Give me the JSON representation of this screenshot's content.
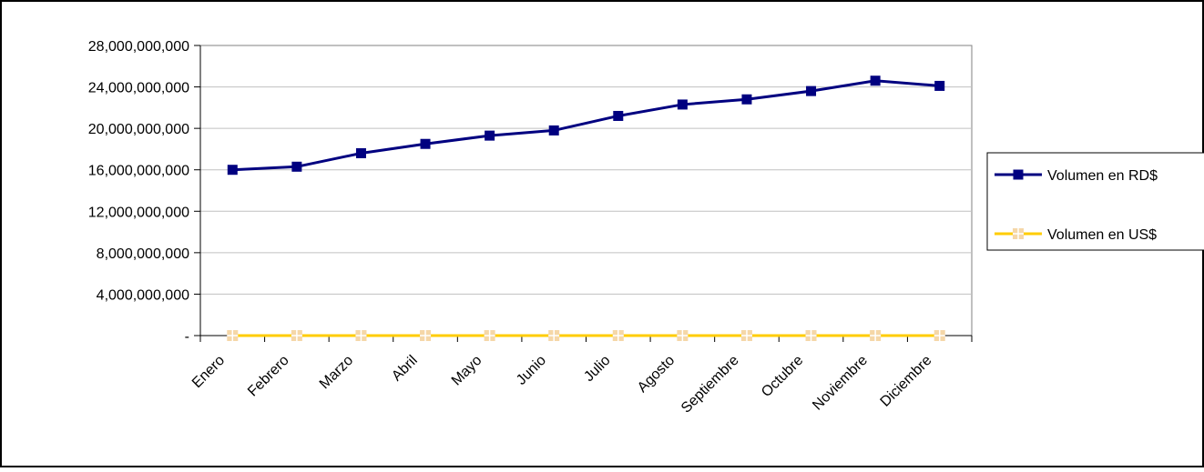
{
  "chart_data": {
    "type": "line",
    "title": "",
    "xlabel": "",
    "ylabel": "",
    "categories": [
      "Enero",
      "Febrero",
      "Marzo",
      "Abril",
      "Mayo",
      "Junio",
      "Julio",
      "Agosto",
      "Septiembre",
      "Octubre",
      "Noviembre",
      "Diciembre"
    ],
    "ylim": [
      0,
      28000000000
    ],
    "yticks": [
      0,
      4000000000,
      8000000000,
      12000000000,
      16000000000,
      20000000000,
      24000000000,
      28000000000
    ],
    "ytick_labels": [
      "-",
      "4,000,000,000",
      "8,000,000,000",
      "12,000,000,000",
      "16,000,000,000",
      "20,000,000,000",
      "24,000,000,000",
      "28,000,000,000"
    ],
    "grid": true,
    "legend_position": "right",
    "series": [
      {
        "name": "Volumen en RD$",
        "color": "#000080",
        "marker": "square",
        "values": [
          16000000000,
          16300000000,
          17600000000,
          18500000000,
          19300000000,
          19800000000,
          21200000000,
          22300000000,
          22800000000,
          23600000000,
          24600000000,
          24100000000
        ]
      },
      {
        "name": "Volumen en US$",
        "color": "#FFCC00",
        "marker_color": "#F5D7A8",
        "marker": "square-plus",
        "values": [
          0,
          0,
          0,
          0,
          0,
          0,
          0,
          0,
          0,
          0,
          0,
          0
        ]
      }
    ]
  }
}
